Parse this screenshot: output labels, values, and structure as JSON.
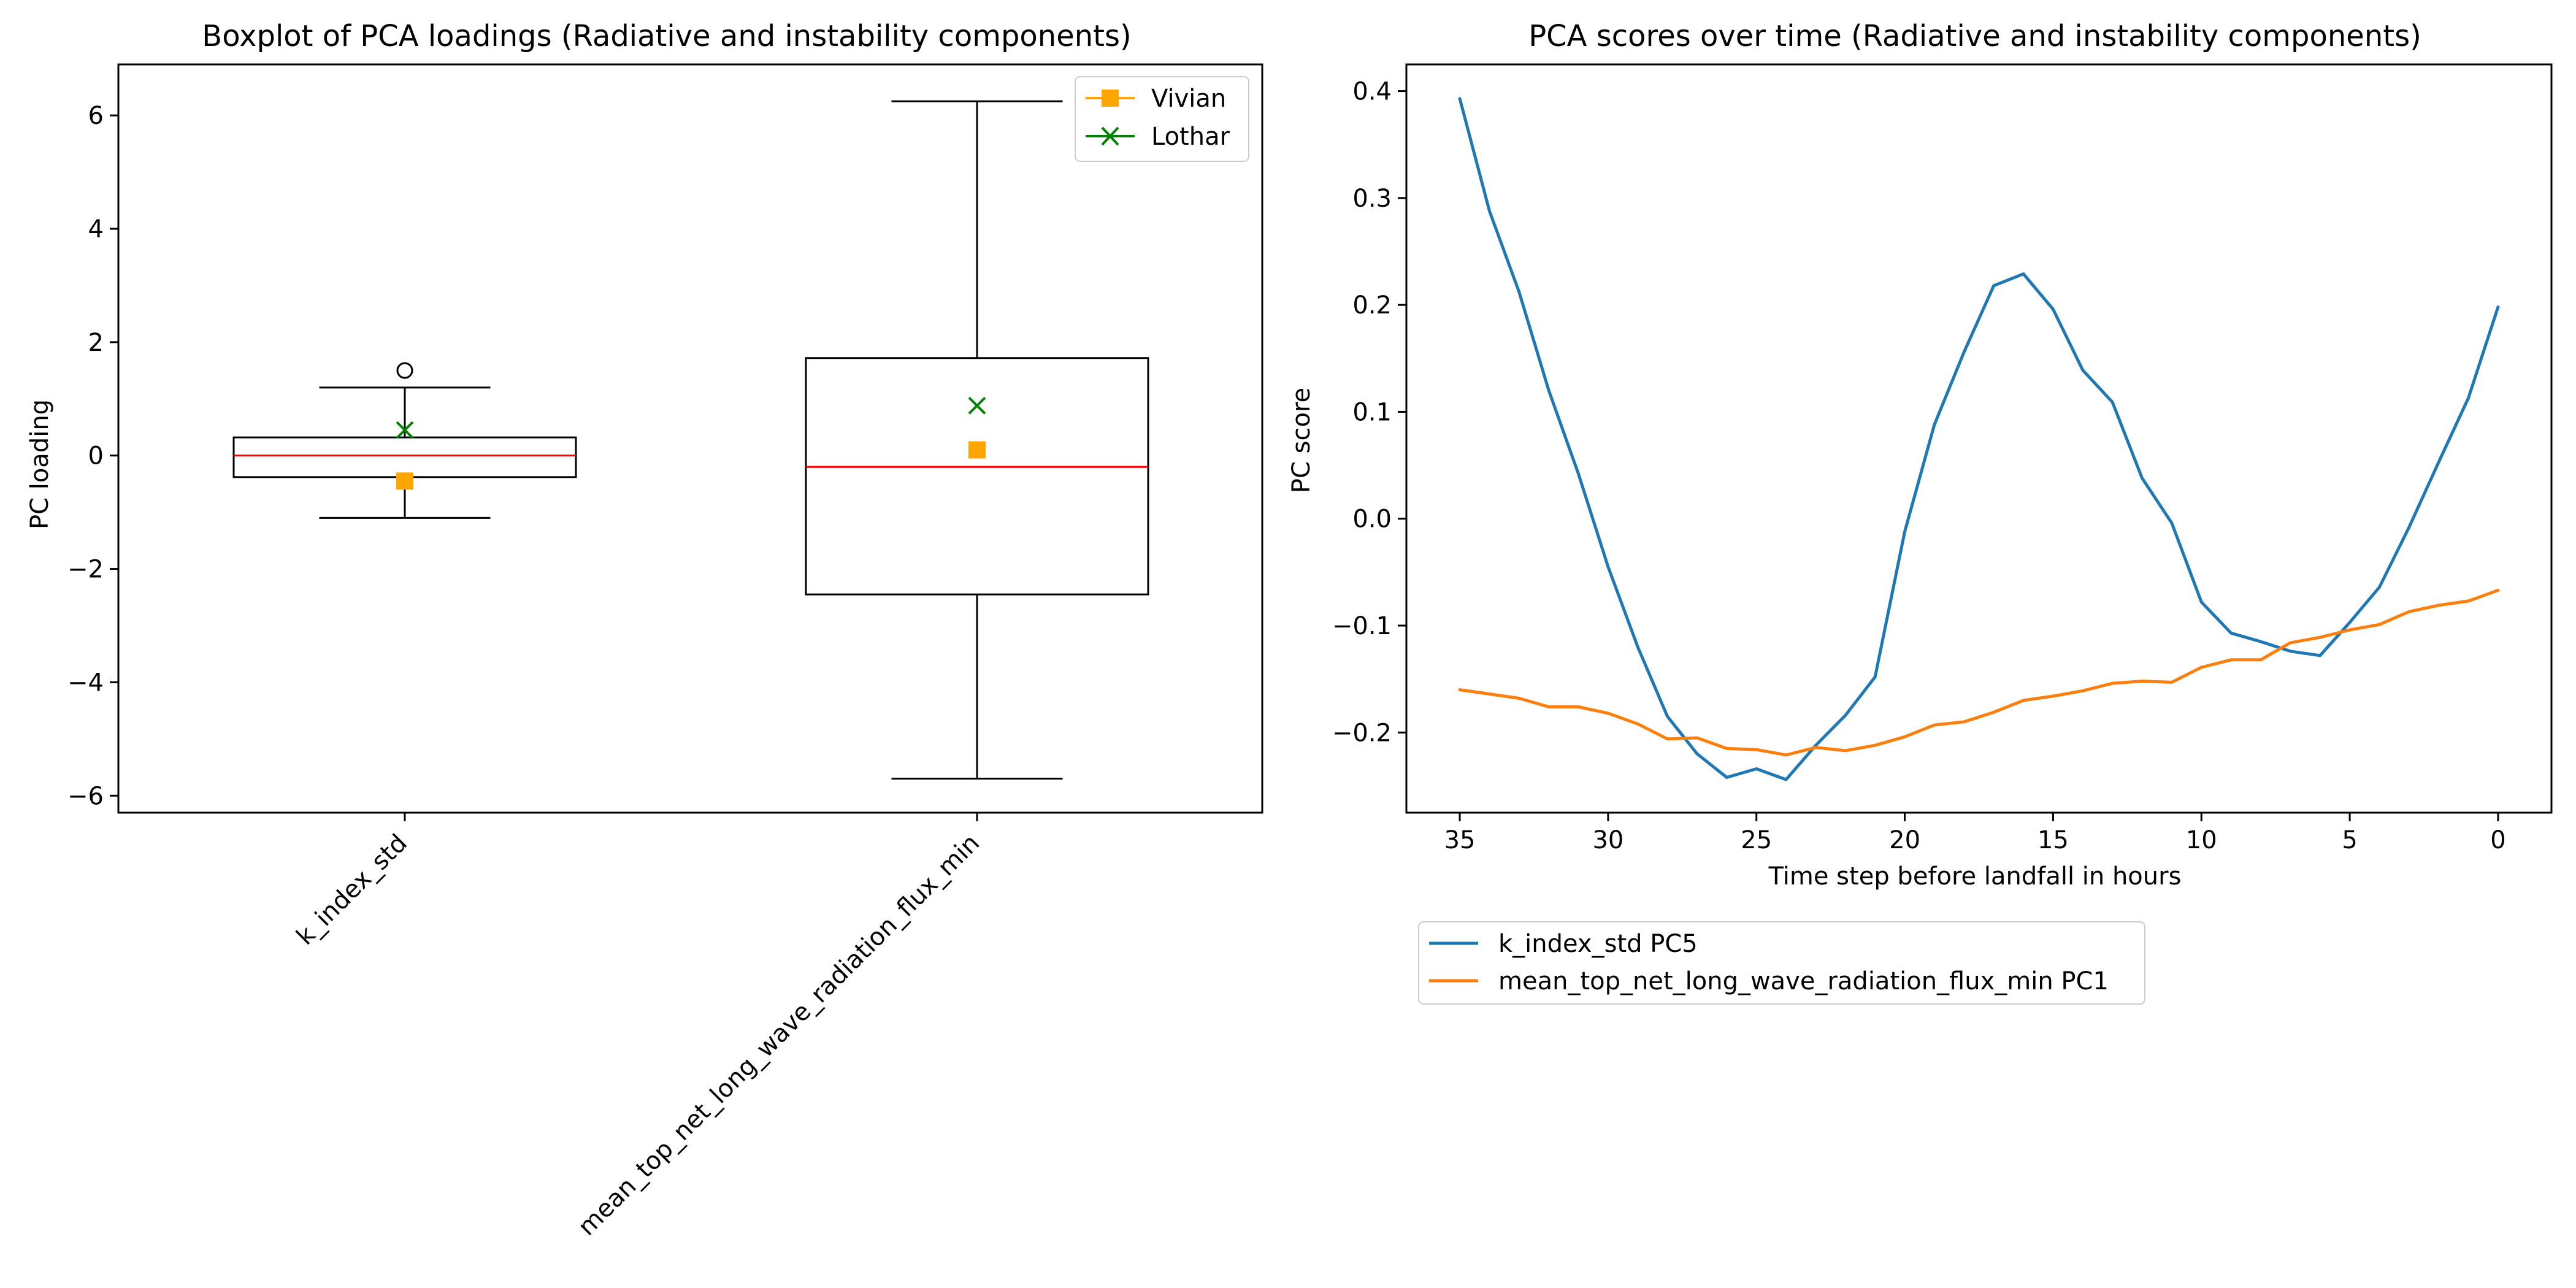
{
  "chart_data": [
    {
      "type": "boxplot",
      "title": "Boxplot of PCA loadings (Radiative and instability components)",
      "xlabel": "",
      "ylabel": "PC loading",
      "ylim": [
        -6.3,
        6.9
      ],
      "yticks": [
        -6,
        -4,
        -2,
        0,
        2,
        4,
        6
      ],
      "grid": false,
      "legend_position": "top-right",
      "categories": [
        "k_index_std",
        "mean_top_net_long_wave_radiation_flux_min"
      ],
      "boxes": [
        {
          "category": "k_index_std",
          "whisker_low": -1.1,
          "q1": -0.38,
          "median": 0.0,
          "q3": 0.32,
          "whisker_high": 1.2,
          "outliers": [
            1.5
          ]
        },
        {
          "category": "mean_top_net_long_wave_radiation_flux_min",
          "whisker_low": -5.7,
          "q1": -2.45,
          "median": -0.2,
          "q3": 1.72,
          "whisker_high": 6.25,
          "outliers": []
        }
      ],
      "series": [
        {
          "name": "Vivian",
          "marker": "square",
          "color": "#ffa500",
          "values": [
            -0.45,
            0.1
          ]
        },
        {
          "name": "Lothar",
          "marker": "x",
          "color": "#008000",
          "values": [
            0.45,
            0.88
          ]
        }
      ],
      "box_color": "#000000",
      "median_color": "#ff0000"
    },
    {
      "type": "line",
      "title": "PCA scores over time (Radiative and instability components)",
      "xlabel": "Time step before landfall in hours",
      "ylabel": "PC score",
      "xlim": [
        36.8,
        -1.8
      ],
      "ylim": [
        -0.275,
        0.425
      ],
      "x_inverted": true,
      "xticks": [
        35,
        30,
        25,
        20,
        15,
        10,
        5,
        0
      ],
      "yticks": [
        -0.2,
        -0.1,
        0.0,
        0.1,
        0.2,
        0.3,
        0.4
      ],
      "ytick_labels": [
        "−0.2",
        "−0.1",
        "0.0",
        "0.1",
        "0.2",
        "0.3",
        "0.4"
      ],
      "grid": false,
      "legend_position": "below the axes, left",
      "x": [
        35,
        34,
        33,
        32,
        31,
        30,
        29,
        28,
        27,
        26,
        25,
        24,
        23,
        22,
        21,
        20,
        19,
        18,
        17,
        16,
        15,
        14,
        13,
        12,
        11,
        10,
        9,
        8,
        7,
        6,
        5,
        4,
        3,
        2,
        1,
        0
      ],
      "series": [
        {
          "name": "k_index_std PC5",
          "color": "#1f77b4",
          "values": [
            0.393,
            0.288,
            0.212,
            0.12,
            0.042,
            -0.045,
            -0.12,
            -0.185,
            -0.22,
            -0.242,
            -0.234,
            -0.244,
            -0.212,
            -0.184,
            -0.148,
            -0.012,
            0.088,
            0.156,
            0.218,
            0.229,
            0.196,
            0.139,
            0.109,
            0.038,
            -0.004,
            -0.078,
            -0.107,
            -0.115,
            -0.124,
            -0.128,
            -0.097,
            -0.064,
            -0.008,
            0.053,
            0.113,
            0.198
          ]
        },
        {
          "name": "mean_top_net_long_wave_radiation_flux_min PC1",
          "color": "#ff7f0e",
          "values": [
            -0.16,
            -0.164,
            -0.168,
            -0.176,
            -0.176,
            -0.182,
            -0.192,
            -0.206,
            -0.205,
            -0.215,
            -0.216,
            -0.221,
            -0.214,
            -0.217,
            -0.212,
            -0.204,
            -0.193,
            -0.19,
            -0.181,
            -0.17,
            -0.166,
            -0.161,
            -0.154,
            -0.152,
            -0.153,
            -0.139,
            -0.132,
            -0.132,
            -0.116,
            -0.111,
            -0.104,
            -0.099,
            -0.087,
            -0.081,
            -0.077,
            -0.067
          ]
        }
      ]
    }
  ]
}
